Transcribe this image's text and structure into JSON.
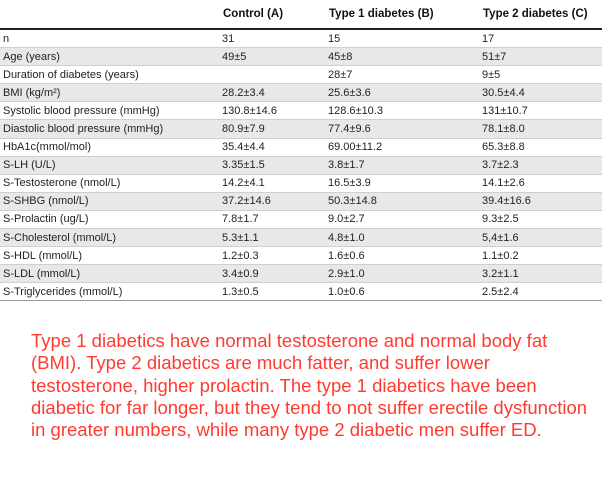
{
  "table": {
    "headers": [
      "",
      "Control (A)",
      "Type 1 diabetes (B)",
      "Type 2 diabetes (C)"
    ],
    "rows": [
      [
        "n",
        "31",
        "15",
        "17"
      ],
      [
        "Age (years)",
        "49±5",
        "45±8",
        "51±7"
      ],
      [
        "Duration of diabetes (years)",
        "",
        "28±7",
        "9±5"
      ],
      [
        "BMI (kg/m²)",
        "28.2±3.4",
        "25.6±3.6",
        "30.5±4.4"
      ],
      [
        "Systolic blood pressure (mmHg)",
        "130.8±14.6",
        "128.6±10.3",
        "131±10.7"
      ],
      [
        "Diastolic blood pressure (mmHg)",
        "80.9±7.9",
        "77.4±9.6",
        "78.1±8.0"
      ],
      [
        "HbA1c(mmol/mol)",
        "35.4±4.4",
        "69.00±11.2",
        "65.3±8.8"
      ],
      [
        "S-LH (U/L)",
        "3.35±1.5",
        "3.8±1.7",
        "3.7±2.3"
      ],
      [
        "S-Testosterone (nmol/L)",
        "14.2±4.1",
        "16.5±3.9",
        "14.1±2.6"
      ],
      [
        "S-SHBG (nmol/L)",
        "37.2±14.6",
        "50.3±14.8",
        "39.4±16.6"
      ],
      [
        "S-Prolactin (ug/L)",
        "7.8±1.7",
        "9.0±2.7",
        "9.3±2.5"
      ],
      [
        "S-Cholesterol (mmol/L)",
        "5.3±1.1",
        "4.8±1.0",
        "5,4±1.6"
      ],
      [
        "S-HDL (mmol/L)",
        "1.2±0.3",
        "1.6±0.6",
        "1.1±0.2"
      ],
      [
        "S-LDL (mmol/L)",
        "3.4±0.9",
        "2.9±1.0",
        "3.2±1.1"
      ],
      [
        "S-Triglycerides (mmol/L)",
        "1.3±0.5",
        "1.0±0.6",
        "2.5±2.4"
      ]
    ]
  },
  "caption": "Type 1 diabetics have normal testosterone and normal body fat (BMI). Type 2 diabetics are much fatter, and suffer lower testosterone, higher prolactin. The type 1 diabetics have been diabetic for far longer, but they tend to not suffer erectile dysfunction in greater numbers, while many type 2 diabetic men suffer ED.",
  "colors": {
    "caption": "#ff3b30",
    "row_stripe": "#e8e8e8",
    "text": "#222222"
  }
}
